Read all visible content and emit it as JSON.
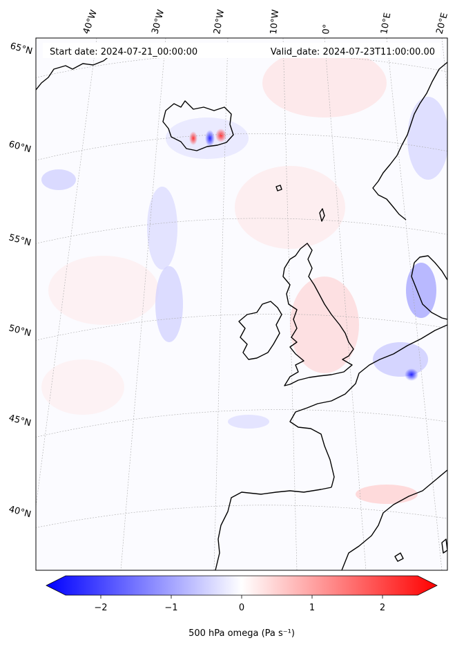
{
  "header": {
    "start_date": "Start date: 2024-07-21_00:00:00",
    "valid_date": "Valid_date: 2024-07-23T11:00:00.00"
  },
  "lon_labels": [
    "40°W",
    "30°W",
    "20°W",
    "10°W",
    "0°",
    "10°E",
    "20°E"
  ],
  "lat_labels": [
    "65°N",
    "60°N",
    "55°N",
    "50°N",
    "45°N",
    "40°N"
  ],
  "colorbar": {
    "title": "500 hPa omega (Pa s⁻¹)",
    "ticks": [
      "−2",
      "−1",
      "0",
      "1",
      "2"
    ],
    "tick_values": [
      -2,
      -1,
      0,
      1,
      2
    ],
    "range": [
      -2.5,
      2.5
    ],
    "colormap": "bwr",
    "colors": {
      "min": "#0000ff",
      "mid": "#ffffff",
      "max": "#ff0000"
    }
  },
  "map": {
    "projection": "Lambert conformal",
    "coastline_color": "#000000",
    "gridline_style": "dotted grey"
  }
}
